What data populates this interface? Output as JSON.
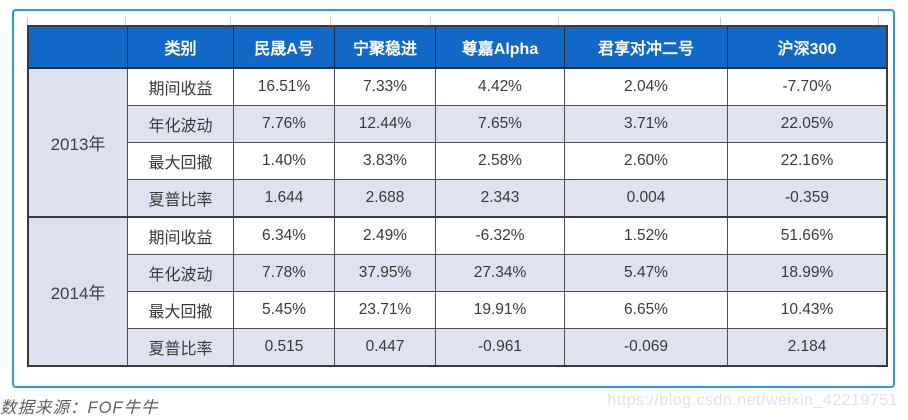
{
  "chart_data": {
    "type": "table",
    "corner_label": "",
    "columns": [
      "类别",
      "民晟A号",
      "宁聚稳进",
      "尊嘉Alpha",
      "君享对冲二号",
      "沪深300"
    ],
    "sections": [
      {
        "year": "2013年",
        "rows": [
          {
            "label": "期间收益",
            "values": [
              "16.51%",
              "7.33%",
              "4.42%",
              "2.04%",
              "-7.70%"
            ]
          },
          {
            "label": "年化波动",
            "values": [
              "7.76%",
              "12.44%",
              "7.65%",
              "3.71%",
              "22.05%"
            ]
          },
          {
            "label": "最大回撤",
            "values": [
              "1.40%",
              "3.83%",
              "2.58%",
              "2.60%",
              "22.16%"
            ]
          },
          {
            "label": "夏普比率",
            "values": [
              "1.644",
              "2.688",
              "2.343",
              "0.004",
              "-0.359"
            ]
          }
        ]
      },
      {
        "year": "2014年",
        "rows": [
          {
            "label": "期间收益",
            "values": [
              "6.34%",
              "2.49%",
              "-6.32%",
              "1.52%",
              "51.66%"
            ]
          },
          {
            "label": "年化波动",
            "values": [
              "7.78%",
              "37.95%",
              "27.34%",
              "5.47%",
              "18.99%"
            ]
          },
          {
            "label": "最大回撤",
            "values": [
              "5.45%",
              "23.71%",
              "19.91%",
              "6.65%",
              "10.43%"
            ]
          },
          {
            "label": "夏普比率",
            "values": [
              "0.515",
              "0.447",
              "-0.961",
              "-0.069",
              "2.184"
            ]
          }
        ]
      }
    ]
  },
  "footer": {
    "source": "数据来源：FOF牛牛"
  },
  "watermark": "https://blog.csdn.net/weixin_42219751",
  "colors": {
    "header_bg": "#1168c6",
    "stripe_bg": "#dee2f1",
    "year_col_bg": "#dce0f0",
    "frame_border": "#2f99da",
    "cell_border": "#4f4f4f",
    "watermark_text": "#e2e2e5"
  }
}
